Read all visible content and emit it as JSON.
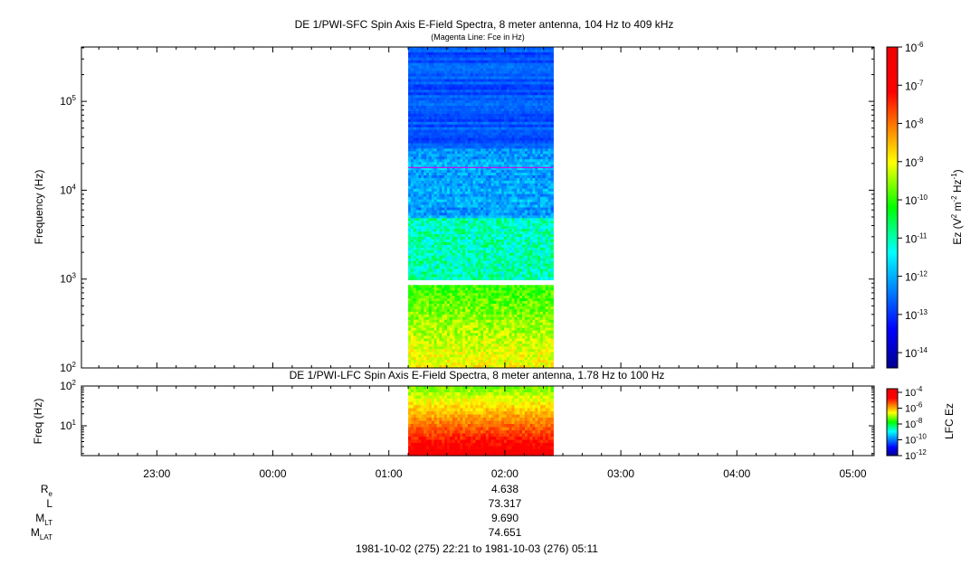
{
  "chart_data": [
    {
      "type": "heatmap",
      "title": "DE 1/PWI-SFC  Spin Axis E-Field Spectra, 8 meter antenna, 104 Hz to 409 kHz",
      "subtitle": "(Magenta Line: Fce in Hz)",
      "ylabel": "Frequency (Hz)",
      "yscale": "log",
      "ylim": [
        100,
        409000
      ],
      "y_ticks": [
        {
          "value": 100,
          "base": "10",
          "exp": "2"
        },
        {
          "value": 1000,
          "base": "10",
          "exp": "3"
        },
        {
          "value": 10000,
          "base": "10",
          "exp": "4"
        },
        {
          "value": 100000,
          "base": "10",
          "exp": "5"
        }
      ],
      "data_time_range": [
        "01:10",
        "02:25"
      ],
      "colorbar": {
        "label_main": "Ez (V",
        "label_sup1": "2",
        "label_mid": " m",
        "label_sup2": "-2",
        "label_mid2": " Hz",
        "label_sup3": "-1",
        "label_end": ")",
        "range_log": [
          -14.4,
          -6
        ],
        "ticks": [
          {
            "exp": "-6",
            "value": -6
          },
          {
            "exp": "-7",
            "value": -7
          },
          {
            "exp": "-8",
            "value": -8
          },
          {
            "exp": "-9",
            "value": -9
          },
          {
            "exp": "-10",
            "value": -10
          },
          {
            "exp": "-11",
            "value": -11
          },
          {
            "exp": "-12",
            "value": -12
          },
          {
            "exp": "-13",
            "value": -13
          },
          {
            "exp": "-14",
            "value": -14
          }
        ]
      }
    },
    {
      "type": "heatmap",
      "title": "DE 1/PWI-LFC  Spin Axis E-Field Spectra, 8 meter antenna, 1.78 Hz to 100 Hz",
      "ylabel": "Freq (Hz)",
      "yscale": "log",
      "ylim": [
        1.78,
        100
      ],
      "y_ticks": [
        {
          "value": 10,
          "base": "10",
          "exp": "1"
        },
        {
          "value": 100,
          "base": "10",
          "exp": "2"
        }
      ],
      "data_time_range": [
        "01:10",
        "02:25"
      ],
      "colorbar": {
        "label": "LFC Ez",
        "range_log": [
          -12,
          -4
        ],
        "ticks": [
          {
            "exp": "-4",
            "value": -4
          },
          {
            "exp": "-6",
            "value": -6
          },
          {
            "exp": "-8",
            "value": -8
          },
          {
            "exp": "-10",
            "value": -10
          },
          {
            "exp": "-12",
            "value": -12
          }
        ]
      }
    }
  ],
  "x_axis": {
    "range": [
      "22:21",
      "05:11"
    ],
    "ticks": [
      "23:00",
      "00:00",
      "01:00",
      "02:00",
      "03:00",
      "04:00",
      "05:00"
    ]
  },
  "ephemeris": [
    {
      "name": "R",
      "sub": "e",
      "value": "4.638"
    },
    {
      "name": "L",
      "sub": "",
      "value": "73.317"
    },
    {
      "name": "M",
      "sub": "LT",
      "value": "9.690"
    },
    {
      "name": "M",
      "sub": "LAT",
      "value": "74.651"
    }
  ],
  "time_range_label": "1981-10-02 (275) 22:21 to 1981-10-03 (276) 05:11"
}
